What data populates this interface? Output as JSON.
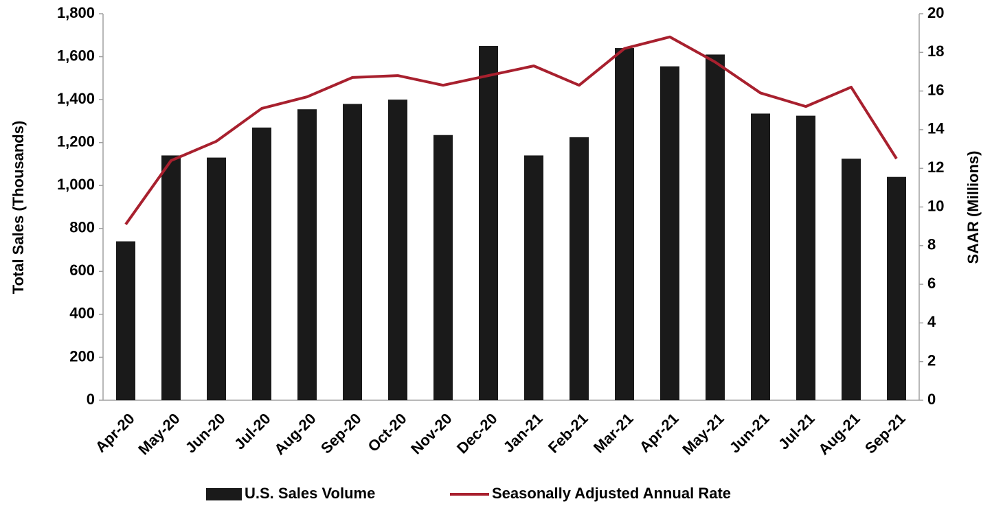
{
  "chart_data": {
    "type": "bar_line",
    "ylabel": "Total Sales (Thousands)",
    "y2label": "SAAR (Millions)",
    "categories": [
      "Apr-20",
      "May-20",
      "Jun-20",
      "Jul-20",
      "Aug-20",
      "Sep-20",
      "Oct-20",
      "Nov-20",
      "Dec-20",
      "Jan-21",
      "Feb-21",
      "Mar-21",
      "Apr-21",
      "May-21",
      "Jun-21",
      "Jul-21",
      "Aug-21",
      "Sep-21"
    ],
    "series": [
      {
        "name": "U.S. Sales Volume",
        "type": "bar",
        "color": "#1a1a1a",
        "values": [
          740,
          1140,
          1130,
          1270,
          1355,
          1380,
          1400,
          1235,
          1650,
          1140,
          1225,
          1640,
          1555,
          1610,
          1335,
          1325,
          1125,
          1040
        ]
      },
      {
        "name": "Seasonally Adjusted Annual Rate",
        "type": "line",
        "axis": "y2",
        "color": "#a8202e",
        "values": [
          9.1,
          12.4,
          13.4,
          15.1,
          15.7,
          16.7,
          16.8,
          16.3,
          16.8,
          17.3,
          16.3,
          18.2,
          18.8,
          17.5,
          15.9,
          15.2,
          16.2,
          12.5
        ]
      }
    ],
    "ylim": [
      0,
      1800
    ],
    "yticks": [
      0,
      200,
      400,
      600,
      800,
      {
        "value": 1000,
        "label": "1,000"
      },
      {
        "value": 1200,
        "label": "1,200"
      },
      {
        "value": 1400,
        "label": "1,400"
      },
      {
        "value": 1600,
        "label": "1,600"
      },
      {
        "value": 1800,
        "label": "1,800"
      }
    ],
    "y2lim": [
      0,
      20
    ],
    "y2ticks": [
      0,
      2,
      4,
      6,
      8,
      10,
      12,
      14,
      16,
      18,
      20
    ],
    "legend": "bottom"
  }
}
